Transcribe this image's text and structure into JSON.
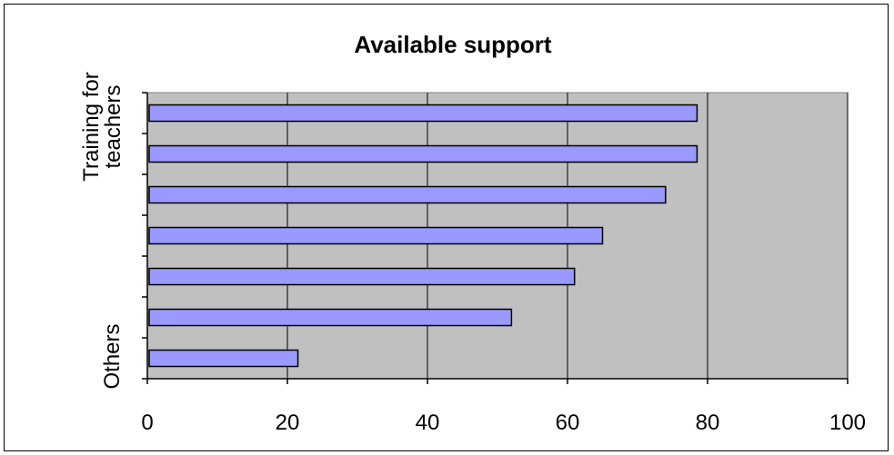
{
  "chart_data": {
    "type": "bar",
    "orientation": "horizontal",
    "title": "Available support",
    "categories": [
      "Others",
      "",
      "",
      "",
      "",
      "",
      "Training for teachers"
    ],
    "values": [
      21.5,
      52,
      61,
      65,
      74,
      78.5,
      78.5
    ],
    "xlim": [
      0,
      100
    ],
    "xticks": [
      0,
      20,
      40,
      60,
      80,
      100
    ],
    "xlabel": "",
    "ylabel": "",
    "grid": true,
    "legend": "none",
    "colors": {
      "bar_fill": "#9999ff",
      "bar_stroke": "#000000",
      "plot_background": "#c0c0c0",
      "gridline": "#000000"
    }
  }
}
